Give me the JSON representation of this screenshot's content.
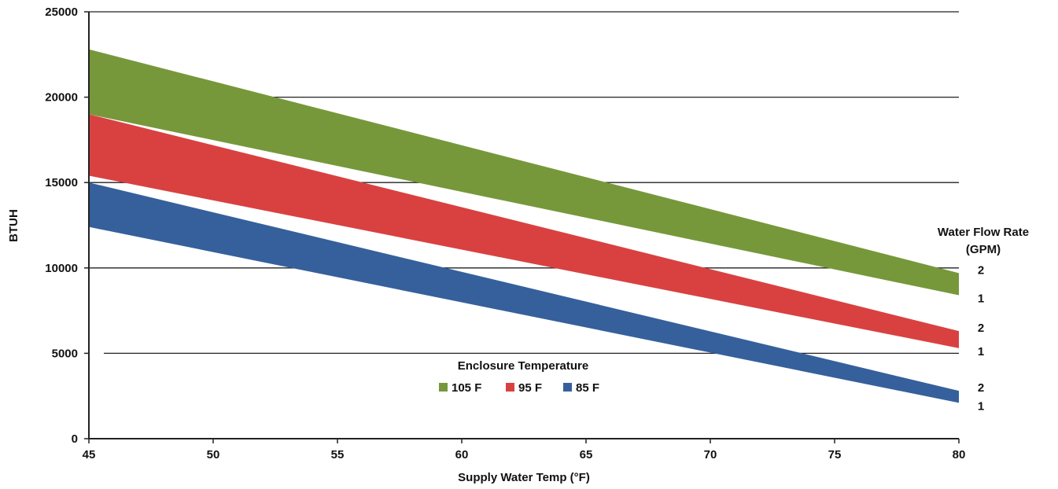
{
  "chart_data": {
    "type": "area",
    "xlabel": "Supply Water Temp (°F)",
    "ylabel": "BTUH",
    "xlim": [
      45,
      80
    ],
    "ylim": [
      0,
      25000
    ],
    "x_ticks": [
      "45",
      "50",
      "55",
      "60",
      "65",
      "70",
      "75",
      "80"
    ],
    "y_ticks": [
      "0",
      "5000",
      "10000",
      "15000",
      "20000",
      "25000"
    ],
    "grid": true,
    "legend": {
      "title": "Enclosure Temperature",
      "placement": "center",
      "entries": [
        "105 F",
        "95 F",
        "85 F"
      ]
    },
    "flow_rate_title": [
      "Water Flow Rate",
      "(GPM)"
    ],
    "x": [
      45,
      80
    ],
    "series": [
      {
        "name": "105 F",
        "color": "#76983a",
        "flow_2_gpm": [
          22800,
          9700
        ],
        "flow_1_gpm": [
          19000,
          8400
        ]
      },
      {
        "name": "95 F",
        "color": "#d94141",
        "flow_2_gpm": [
          19000,
          6300
        ],
        "flow_1_gpm": [
          15400,
          5300
        ]
      },
      {
        "name": "85 F",
        "color": "#35609c",
        "flow_2_gpm": [
          15000,
          2800
        ],
        "flow_1_gpm": [
          12400,
          2100
        ]
      }
    ],
    "flow_labels": [
      {
        "series": "105 F",
        "upper": "2",
        "lower": "1"
      },
      {
        "series": "95 F",
        "upper": "2",
        "lower": "1"
      },
      {
        "series": "85 F",
        "upper": "2",
        "lower": "1"
      }
    ]
  }
}
